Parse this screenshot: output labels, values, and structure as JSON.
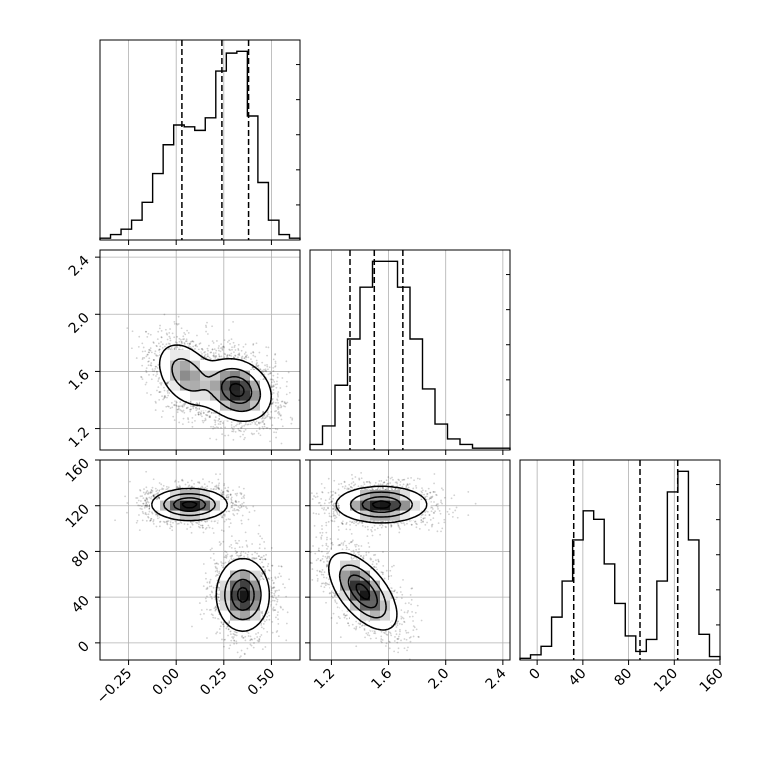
{
  "chart_data": {
    "type": "corner",
    "grid": true,
    "quantiles": [
      0.16,
      0.5,
      0.84
    ],
    "parameters": [
      {
        "range": [
          -0.4,
          0.65
        ],
        "ticks": [
          -0.25,
          0.0,
          0.25,
          0.5
        ],
        "tick_labels": [
          "−0.25",
          "0.00",
          "0.25",
          "0.50"
        ],
        "quantile_values": [
          0.03,
          0.24,
          0.38
        ],
        "histogram": [
          0.01,
          0.03,
          0.06,
          0.11,
          0.21,
          0.37,
          0.53,
          0.64,
          0.63,
          0.61,
          0.68,
          0.94,
          1.04,
          1.05,
          0.69,
          0.32,
          0.11,
          0.03,
          0.01
        ]
      },
      {
        "range": [
          1.05,
          2.45
        ],
        "ticks": [
          1.2,
          1.6,
          2.0,
          2.4
        ],
        "tick_labels": [
          "1.2",
          "1.6",
          "2.0",
          "2.4"
        ],
        "quantile_values": [
          1.33,
          1.5,
          1.7
        ],
        "histogram": [
          0.03,
          0.13,
          0.35,
          0.6,
          0.88,
          1.02,
          1.02,
          0.88,
          0.6,
          0.33,
          0.14,
          0.06,
          0.03,
          0.01,
          0.01,
          0.01
        ]
      },
      {
        "range": [
          -15,
          160
        ],
        "ticks": [
          0,
          40,
          80,
          120,
          160
        ],
        "tick_labels": [
          "0",
          "40",
          "80",
          "120",
          "160"
        ],
        "quantile_values": [
          32,
          90,
          123
        ],
        "histogram": [
          0.01,
          0.03,
          0.08,
          0.25,
          0.46,
          0.7,
          0.87,
          0.82,
          0.56,
          0.33,
          0.14,
          0.05,
          0.12,
          0.46,
          0.98,
          1.1,
          0.7,
          0.15,
          0.02
        ]
      }
    ],
    "joint_panels": [
      {
        "x_param": 0,
        "y_param": 1,
        "modes": [
          {
            "x": 0.32,
            "y": 1.47,
            "sx": 0.09,
            "sy": 0.11,
            "rho": -0.2,
            "w": 1.0
          },
          {
            "x": 0.05,
            "y": 1.58,
            "sx": 0.08,
            "sy": 0.12,
            "rho": -0.35,
            "w": 0.6
          }
        ]
      },
      {
        "x_param": 0,
        "y_param": 2,
        "modes": [
          {
            "x": 0.07,
            "y": 121,
            "sx": 0.1,
            "sy": 7,
            "rho": 0.0,
            "w": 1.0
          },
          {
            "x": 0.35,
            "y": 42,
            "sx": 0.07,
            "sy": 16,
            "rho": 0.0,
            "w": 1.0
          }
        ]
      },
      {
        "x_param": 1,
        "y_param": 2,
        "modes": [
          {
            "x": 1.55,
            "y": 121,
            "sx": 0.16,
            "sy": 8,
            "rho": 0.0,
            "w": 1.0
          },
          {
            "x": 1.42,
            "y": 45,
            "sx": 0.12,
            "sy": 17,
            "rho": -0.6,
            "w": 1.0
          }
        ]
      }
    ]
  }
}
